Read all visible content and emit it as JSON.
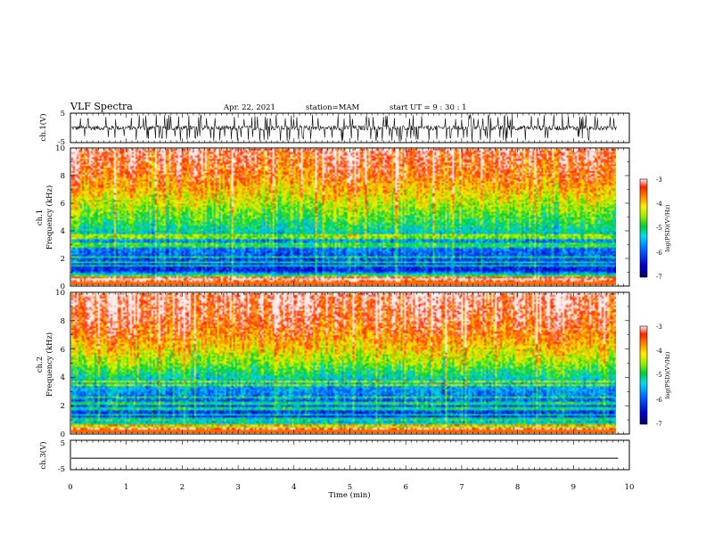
{
  "header": {
    "title": "VLF Spectra",
    "date": "Apr. 22, 2021",
    "station": "station=MAM",
    "start": "start  UT =   9 : 30 : 1"
  },
  "chart_data": [
    {
      "type": "line",
      "panel": "ch1-waveform",
      "ylabel": "ch.1(V)",
      "ylim": [
        -5,
        5
      ],
      "yticks": [
        "5",
        "-5"
      ],
      "note": "dense noisy waveform with impulsive spikes spanning the full range"
    },
    {
      "type": "heatmap",
      "panel": "ch1-spectrogram",
      "ylabel": "Frequency (kHz)",
      "ylabel_channel": "ch.1",
      "ylim": [
        0,
        10
      ],
      "yticks": [
        "0",
        "2",
        "4",
        "6",
        "8",
        "10"
      ],
      "colorbar": {
        "label": "log(PSD)(V²/Hz)",
        "ticks": [
          "-3",
          "-4",
          "-5",
          "-6",
          "-7"
        ],
        "range": [
          -7,
          -3
        ]
      },
      "time_profile": [
        0.55,
        0.6,
        0.5,
        0.45,
        0.4,
        0.5,
        0.55,
        0.65,
        0.5,
        0.45,
        0.5,
        0.4,
        0.35,
        0.45,
        0.5,
        0.6,
        0.55,
        0.5,
        0.45,
        0.55,
        0.6,
        0.5,
        0.45,
        0.5,
        0.55,
        0.6,
        0.5,
        0.45,
        0.4,
        0.5,
        0.55,
        0.5
      ],
      "level_by_frequency_kHz": [
        [
          0.3,
          -3.5
        ],
        [
          1,
          -6.3
        ],
        [
          2,
          -6.0
        ],
        [
          3,
          -5.8
        ],
        [
          4,
          -5.2
        ],
        [
          5,
          -4.8
        ],
        [
          6,
          -4.4
        ],
        [
          7,
          -4.0
        ],
        [
          8,
          -3.6
        ],
        [
          10,
          -3.2
        ]
      ]
    },
    {
      "type": "heatmap",
      "panel": "ch2-spectrogram",
      "ylabel": "Frequency (kHz)",
      "ylabel_channel": "ch.2",
      "ylim": [
        0,
        10
      ],
      "yticks": [
        "0",
        "2",
        "4",
        "6",
        "8",
        "10"
      ],
      "colorbar": {
        "label": "log(PSD)(V²/Hz)",
        "ticks": [
          "-3",
          "-4",
          "-5",
          "-6",
          "-7"
        ],
        "range": [
          -7,
          -3
        ]
      },
      "time_profile": [
        0.45,
        0.5,
        0.55,
        0.6,
        0.55,
        0.5,
        0.45,
        0.4,
        0.45,
        0.5,
        0.55,
        0.6,
        0.65,
        0.6,
        0.5,
        0.45,
        0.4,
        0.45,
        0.5,
        0.55,
        0.6,
        0.55,
        0.5,
        0.45,
        0.4,
        0.45,
        0.5,
        0.55,
        0.6,
        0.55,
        0.5,
        0.45
      ],
      "level_by_frequency_kHz": [
        [
          0.3,
          -4.2
        ],
        [
          1,
          -6.2
        ],
        [
          2,
          -6.0
        ],
        [
          3,
          -5.7
        ],
        [
          4,
          -5.2
        ],
        [
          5,
          -4.6
        ],
        [
          6,
          -4.1
        ],
        [
          7,
          -3.7
        ],
        [
          8,
          -3.4
        ],
        [
          10,
          -3.1
        ]
      ]
    },
    {
      "type": "line",
      "panel": "ch3-waveform",
      "ylabel": "ch.3(V)",
      "ylim": [
        -5,
        5
      ],
      "yticks": [
        "5",
        "-5"
      ],
      "x": [
        0,
        9.8
      ],
      "y": [
        -1.2,
        -1.2
      ]
    }
  ],
  "xaxis": {
    "label": "Time (min)",
    "range": [
      0,
      10
    ],
    "ticks": [
      "0",
      "1",
      "2",
      "3",
      "4",
      "5",
      "6",
      "7",
      "8",
      "9",
      "10"
    ]
  }
}
